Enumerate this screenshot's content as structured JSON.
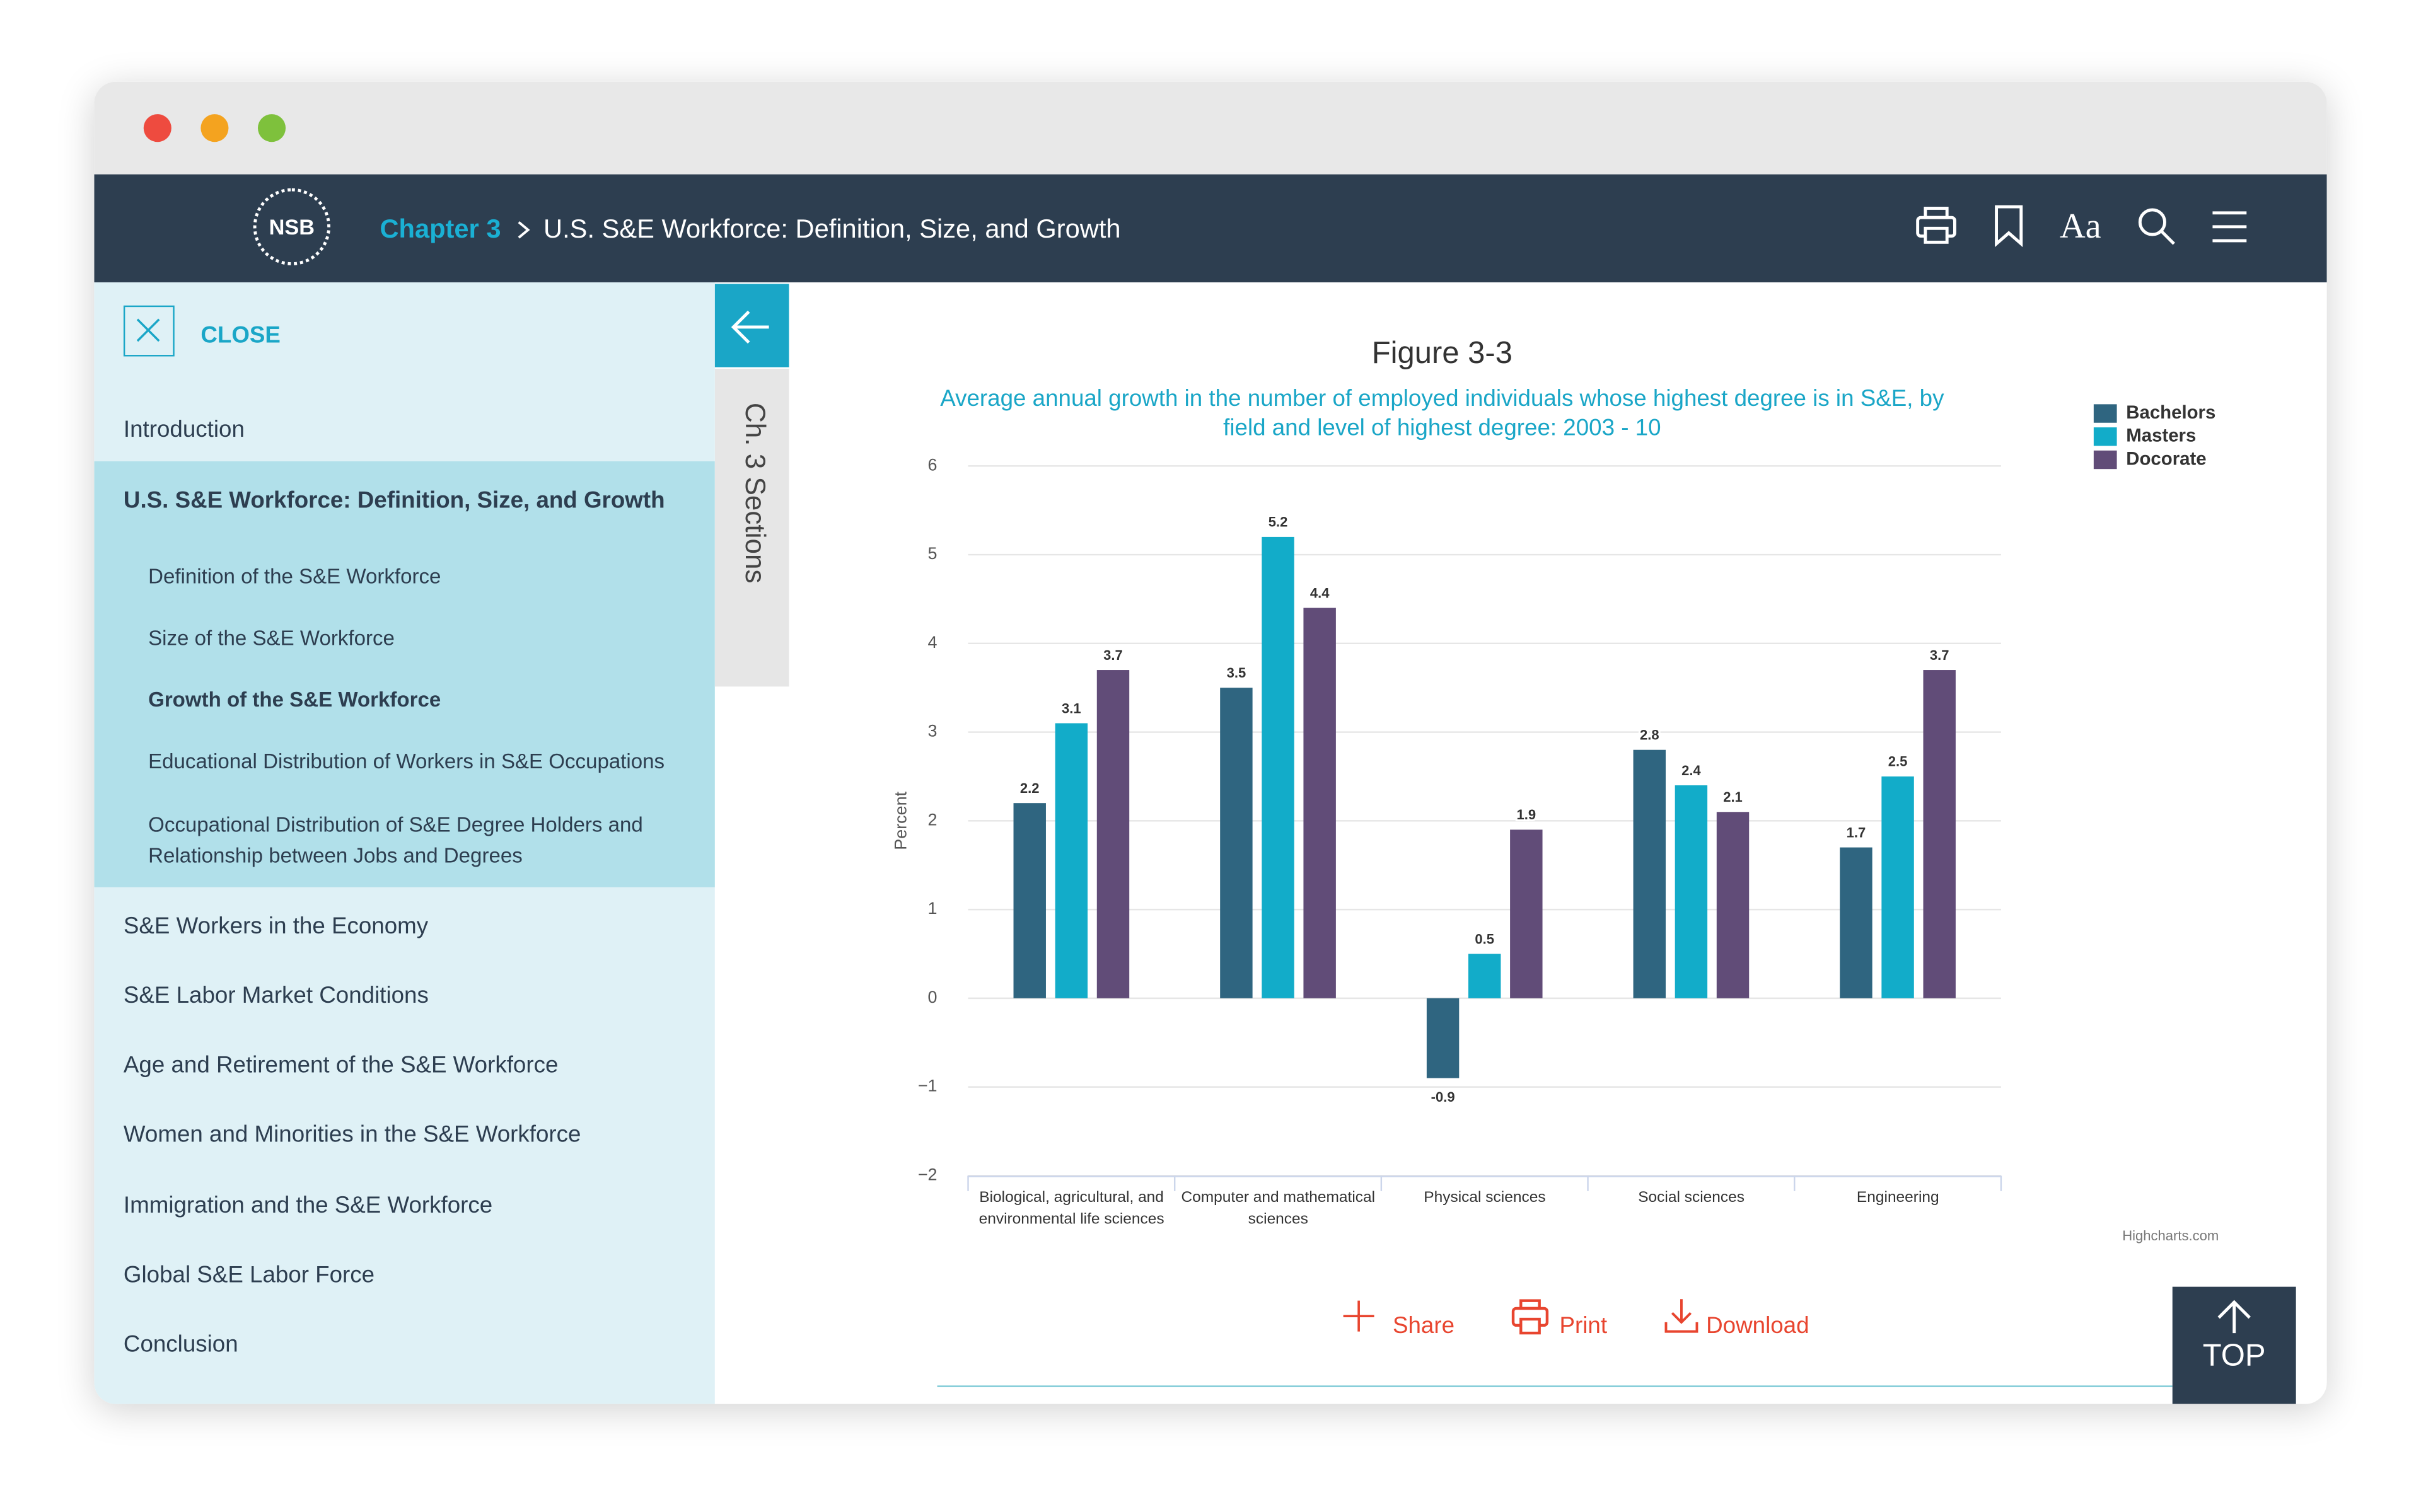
{
  "header": {
    "logo": "NSB",
    "chapter": "Chapter 3",
    "title": "U.S. S&E Workforce: Definition, Size, and Growth",
    "font_button": "Aa"
  },
  "sidebar": {
    "close": "CLOSE",
    "tab": "Ch. 3 Sections",
    "sections": [
      {
        "label": "Introduction"
      },
      {
        "label": "U.S. S&E Workforce: Definition, Size, and Growth",
        "subsections": [
          "Definition of the S&E Workforce",
          "Size of the S&E Workforce",
          "Growth of the S&E Workforce",
          "Educational Distribution of Workers in S&E Occupations",
          "Occupational Distribution of S&E Degree Holders and Relationship between Jobs and Degrees"
        ]
      },
      {
        "label": "S&E Workers in the Economy"
      },
      {
        "label": "S&E Labor Market Conditions"
      },
      {
        "label": "Age and Retirement of the S&E Workforce"
      },
      {
        "label": "Women and Minorities in the S&E Workforce"
      },
      {
        "label": "Immigration and the S&E Workforce"
      },
      {
        "label": "Global S&E Labor Force"
      },
      {
        "label": "Conclusion"
      }
    ]
  },
  "chart_data": {
    "type": "bar",
    "title": "Figure 3-3",
    "subtitle": "Average annual growth in the number of employed individuals whose highest degree is in S&E, by field and level of highest degree: 2003 - 10",
    "y_label": "Percent",
    "categories": [
      "Biological, agricultural, and environmental life sciences",
      "Computer and mathematical sciences",
      "Physical sciences",
      "Social sciences",
      "Engineering"
    ],
    "series": [
      {
        "name": "Bachelors",
        "color": "#2f6580",
        "values": [
          2.2,
          3.5,
          -0.9,
          2.8,
          1.7
        ]
      },
      {
        "name": "Masters",
        "color": "#12acc9",
        "values": [
          3.1,
          5.2,
          0.5,
          2.4,
          2.5
        ]
      },
      {
        "name": "Docorate",
        "color": "#614c78",
        "values": [
          3.7,
          4.4,
          1.9,
          2.1,
          3.7
        ]
      }
    ],
    "ylim": [
      -2,
      6
    ],
    "yticks": [
      {
        "value": -2,
        "label": "−2"
      },
      {
        "value": -1,
        "label": "−1"
      },
      0,
      1,
      2,
      3,
      4,
      5,
      6
    ],
    "grid": true,
    "legend": "upper right",
    "credit": "Highcharts.com"
  },
  "actions": [
    "Share",
    "Print",
    "Download"
  ],
  "top_button": "TOP"
}
